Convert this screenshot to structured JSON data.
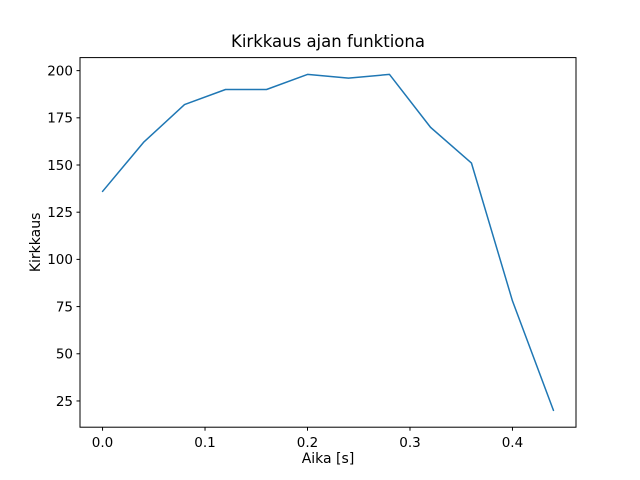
{
  "window": {
    "background_color": "#ffffff"
  },
  "chart_data": {
    "type": "line",
    "title": "Kirkkaus ajan funktiona",
    "xlabel": "Aika [s]",
    "ylabel": "Kirkkaus",
    "x": [
      0.0,
      0.04,
      0.08,
      0.12,
      0.16,
      0.2,
      0.24,
      0.28,
      0.32,
      0.36,
      0.4,
      0.44
    ],
    "y": [
      136,
      162,
      182,
      190,
      190,
      198,
      196,
      198,
      170,
      151,
      78,
      20
    ],
    "series": [
      {
        "name": "Kirkkaus",
        "color": "#1f77b4",
        "line_width": 1.5
      }
    ],
    "xlim": [
      -0.022,
      0.462
    ],
    "ylim": [
      11.1,
      206.9
    ],
    "xticks": [
      0.0,
      0.1,
      0.2,
      0.3,
      0.4
    ],
    "xtick_labels": [
      "0.0",
      "0.1",
      "0.2",
      "0.3",
      "0.4"
    ],
    "yticks": [
      25,
      50,
      75,
      100,
      125,
      150,
      175,
      200
    ],
    "ytick_labels": [
      "25",
      "50",
      "75",
      "100",
      "125",
      "150",
      "175",
      "200"
    ],
    "grid": false,
    "legend": null,
    "axes_color": "#000000",
    "text_color": "#000000"
  }
}
